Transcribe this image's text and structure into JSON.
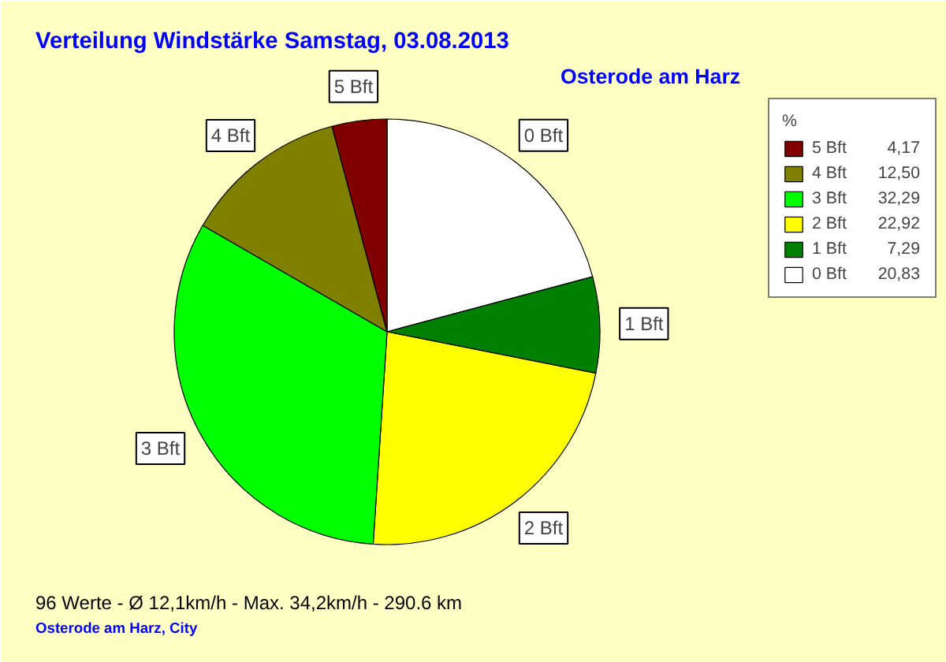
{
  "chart_data": {
    "type": "pie",
    "title": "Verteilung Windstärke  Samstag, 03.08.2013",
    "subtitle": "Osterode am Harz",
    "categories": [
      "0 Bft",
      "1 Bft",
      "2 Bft",
      "3 Bft",
      "4 Bft",
      "5 Bft"
    ],
    "values": [
      20.83,
      7.29,
      22.92,
      32.29,
      12.5,
      4.17
    ],
    "colors": [
      "#ffffff",
      "#008000",
      "#ffff00",
      "#00ff00",
      "#808000",
      "#800000"
    ],
    "value_labels": [
      "20,83",
      "7,29",
      "22,92",
      "32,29",
      "12,50",
      "4,17"
    ],
    "legend_title": "%",
    "legend": "top right",
    "annotations": [
      "96 Werte   -   Ø 12,1km/h  -  Max. 34,2km/h   -   290.6 km",
      "Osterode am Harz, City"
    ]
  }
}
